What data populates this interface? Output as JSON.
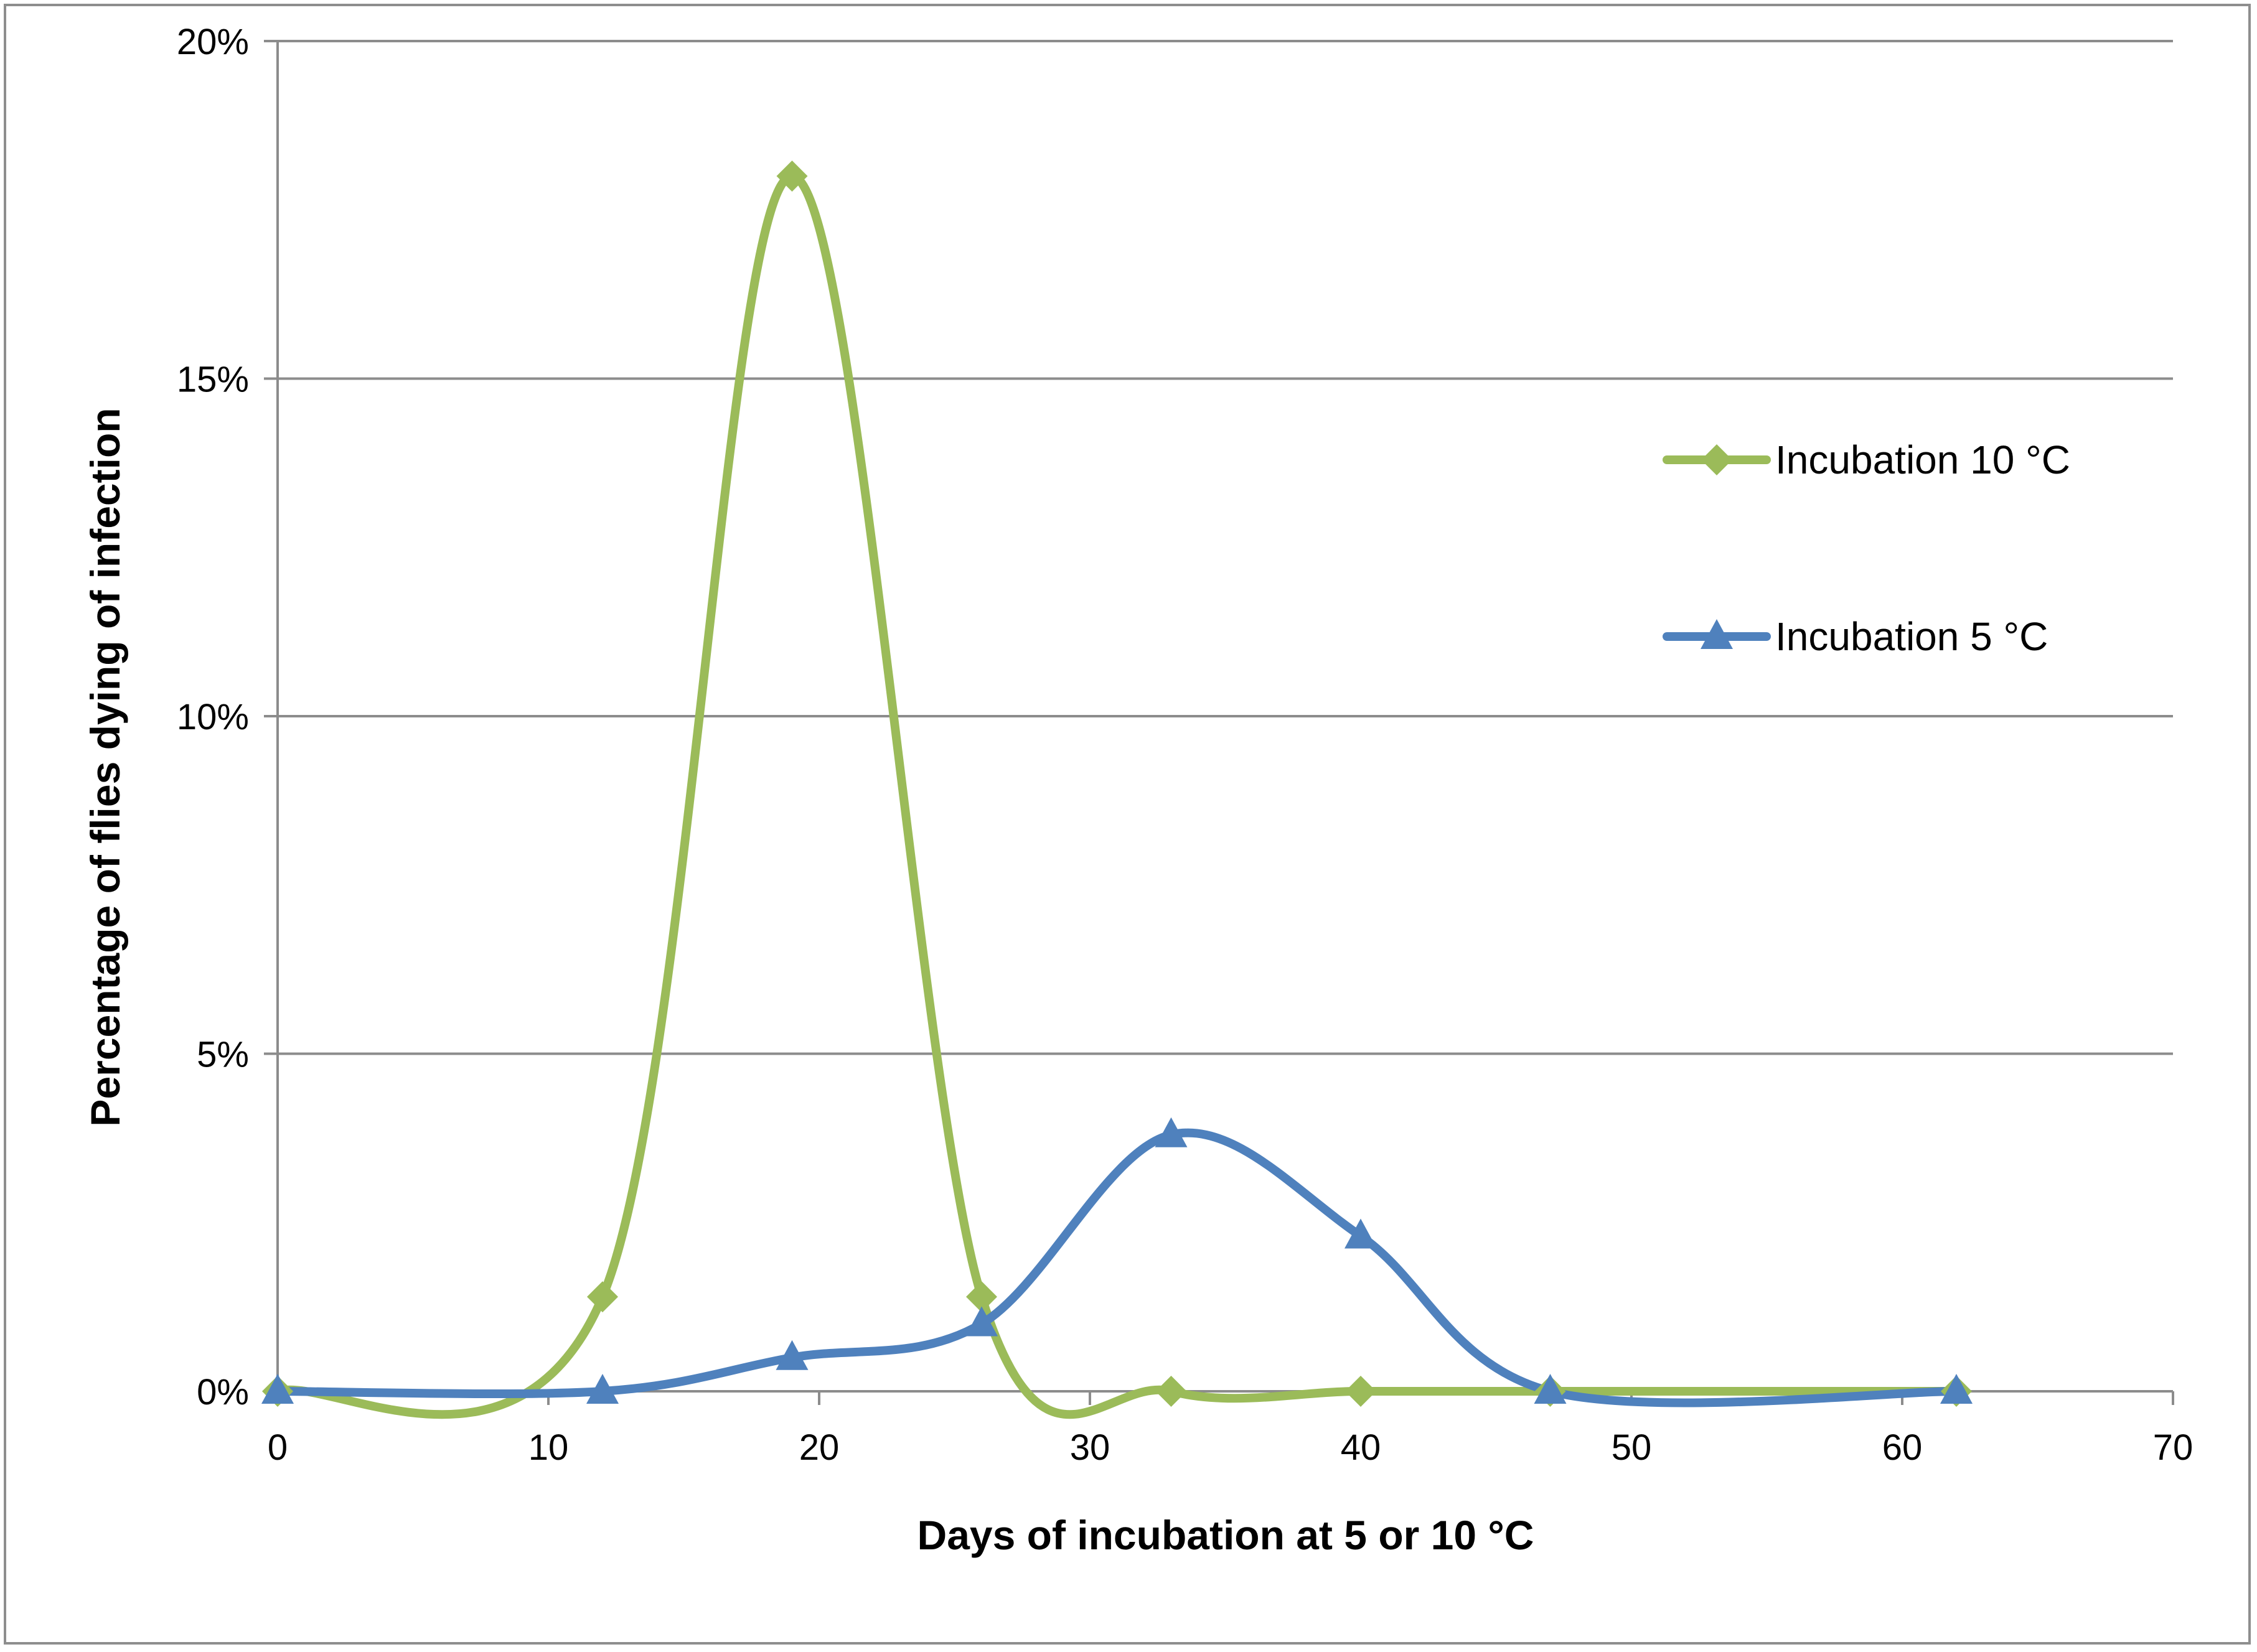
{
  "chart_data": {
    "type": "line",
    "title": "",
    "xlabel": "Days of incubation at 5 or 10  °C",
    "ylabel": "Percentage of  flies dying of infection",
    "xlim": [
      0,
      70
    ],
    "ylim": [
      0,
      20
    ],
    "x_ticks": [
      0,
      10,
      20,
      30,
      40,
      50,
      60,
      70
    ],
    "x_tick_labels": [
      "0",
      "10",
      "20",
      "30",
      "40",
      "50",
      "60",
      "70"
    ],
    "y_ticks": [
      0,
      5,
      10,
      15,
      20
    ],
    "y_tick_labels": [
      "0%",
      "5%",
      "10%",
      "15%",
      "20%"
    ],
    "grid": "horizontal",
    "legend_position": "right",
    "series": [
      {
        "name": "Incubation 10 °C",
        "color": "#9bbb59",
        "marker": "diamond",
        "x": [
          0,
          12,
          19,
          26,
          33,
          40,
          47,
          62
        ],
        "y": [
          0,
          1.4,
          18.0,
          1.4,
          0,
          0,
          0,
          0
        ]
      },
      {
        "name": "Incubation 5 °C",
        "color": "#4f81bd",
        "marker": "triangle",
        "x": [
          0,
          12,
          19,
          26,
          33,
          40,
          47,
          62
        ],
        "y": [
          0,
          0,
          0.5,
          1.0,
          3.8,
          2.3,
          0,
          0
        ]
      }
    ]
  }
}
